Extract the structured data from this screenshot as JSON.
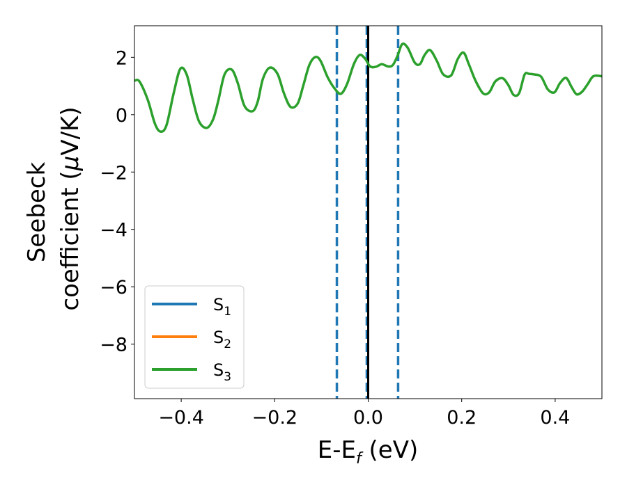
{
  "chart_data": {
    "type": "line",
    "xlabel": {
      "main": "E-E",
      "sub": "f",
      "tail": " (eV)"
    },
    "ylabel": {
      "line1": "Seebeck",
      "line2_pre": "coefficient  (",
      "line2_mu": "μ",
      "line2_post": "V/K)"
    },
    "xlim": [
      -0.5,
      0.5
    ],
    "ylim": [
      -9.9,
      3.1
    ],
    "xticks": [
      -0.4,
      -0.2,
      0.0,
      0.2,
      0.4
    ],
    "xtick_labels": [
      "−0.4",
      "−0.2",
      "0.0",
      "0.2",
      "0.4"
    ],
    "yticks": [
      2,
      0,
      -2,
      -4,
      -6,
      -8
    ],
    "ytick_labels": [
      "2",
      "0",
      "−2",
      "−4",
      "−6",
      "−8"
    ],
    "grid": false,
    "legend_position": "lower-left",
    "series": [
      {
        "name": {
          "base": "S",
          "sub": "1"
        },
        "color": "#1f77b4",
        "x": [],
        "y": []
      },
      {
        "name": {
          "base": "S",
          "sub": "2"
        },
        "color": "#ff7f0e",
        "x": [],
        "y": []
      },
      {
        "name": {
          "base": "S",
          "sub": "3"
        },
        "color": "#2ca02c",
        "x": [
          -0.5,
          -0.4894,
          -0.4716,
          -0.4563,
          -0.4444,
          -0.4315,
          -0.4161,
          -0.4019,
          -0.3883,
          -0.3753,
          -0.3617,
          -0.3452,
          -0.3317,
          -0.3209,
          -0.3073,
          -0.2919,
          -0.279,
          -0.2648,
          -0.2476,
          -0.2364,
          -0.2252,
          -0.2104,
          -0.1939,
          -0.1803,
          -0.1661,
          -0.1507,
          -0.1389,
          -0.1259,
          -0.1129,
          -0.1017,
          -0.0863,
          -0.0703,
          -0.0579,
          -0.0449,
          -0.0307,
          -0.0183,
          -0.0065,
          0.0042,
          0.0166,
          0.029,
          0.0426,
          0.0527,
          0.0627,
          0.0728,
          0.0846,
          0.0994,
          0.1107,
          0.1207,
          0.1325,
          0.1467,
          0.1603,
          0.1775,
          0.1916,
          0.2041,
          0.2153,
          0.23,
          0.246,
          0.259,
          0.272,
          0.2874,
          0.2998,
          0.311,
          0.3229,
          0.3347,
          0.3447,
          0.356,
          0.3701,
          0.3843,
          0.3985,
          0.4103,
          0.4234,
          0.4352,
          0.4458,
          0.4576,
          0.4694,
          0.4818,
          0.5
        ],
        "y": [
          1.18,
          1.16,
          0.52,
          -0.31,
          -0.59,
          -0.37,
          0.75,
          1.6,
          1.4,
          0.53,
          -0.24,
          -0.46,
          -0.16,
          0.47,
          1.4,
          1.57,
          1.1,
          0.31,
          0.12,
          0.45,
          1.25,
          1.64,
          1.42,
          0.75,
          0.27,
          0.39,
          1.01,
          1.73,
          2.01,
          1.87,
          1.29,
          0.88,
          0.73,
          1.08,
          1.76,
          2.08,
          1.95,
          1.68,
          1.67,
          1.76,
          1.68,
          1.73,
          2.05,
          2.46,
          2.33,
          1.82,
          1.76,
          2.08,
          2.25,
          1.88,
          1.41,
          1.37,
          1.94,
          2.16,
          1.76,
          1.17,
          0.74,
          0.78,
          1.16,
          1.27,
          1.03,
          0.69,
          0.75,
          1.4,
          1.42,
          1.4,
          1.32,
          0.88,
          0.78,
          1.1,
          1.28,
          0.96,
          0.71,
          0.8,
          1.06,
          1.34,
          1.34
        ]
      }
    ],
    "vlines": [
      {
        "x": -0.067,
        "color": "#1f77b4",
        "style": "dashed"
      },
      {
        "x": -0.003,
        "color": "#1f77b4",
        "style": "dashed"
      },
      {
        "x": 0.0,
        "color": "#000000",
        "style": "solid"
      },
      {
        "x": 0.064,
        "color": "#1f77b4",
        "style": "dashed"
      }
    ]
  }
}
